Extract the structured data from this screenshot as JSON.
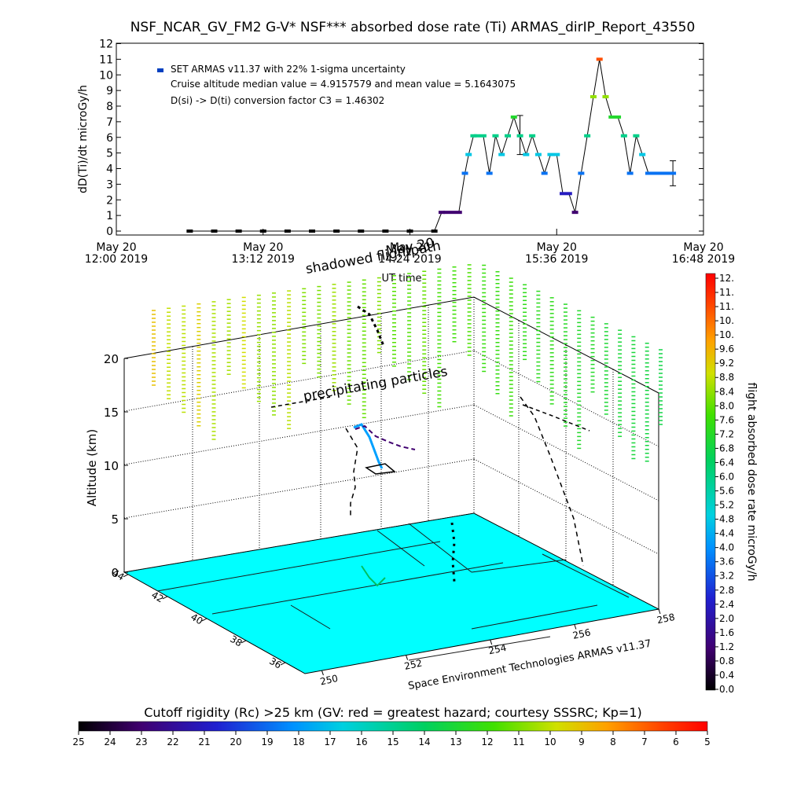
{
  "top_chart": {
    "title": "NSF_NCAR_GV_FM2 G-V* NSF*** absorbed dose rate (Ti) ARMAS_dirIP_Report_43550",
    "ylabel": "dD(Ti)/dt microGy/h",
    "xlabel": "UT time",
    "legend": "SET ARMAS v11.37 with 22% 1-sigma uncertainty",
    "note1": "Cruise altitude median value = 4.9157579 and mean value = 5.1643075",
    "note2": "D(si) -> D(ti) conversion factor C3 = 1.46302",
    "x_ticks": [
      {
        "line1": "May 20",
        "line2": "12:00 2019"
      },
      {
        "line1": "May 20",
        "line2": "13:12 2019"
      },
      {
        "line1": "May 20",
        "line2": "14:24 2019"
      },
      {
        "line1": "May 20",
        "line2": "15:36 2019"
      },
      {
        "line1": "May 20",
        "line2": "16:48 2019"
      }
    ],
    "y_ticks": [
      "0",
      "1",
      "2",
      "3",
      "4",
      "5",
      "6",
      "7",
      "8",
      "9",
      "10",
      "11",
      "12"
    ]
  },
  "scene": {
    "ylabel": "Altitude (km)",
    "alt_ticks": [
      "0",
      "5",
      "10",
      "15",
      "20"
    ],
    "lat_ticks": [
      "36",
      "38",
      "40",
      "42",
      "44"
    ],
    "lon_ticks": [
      "250",
      "252",
      "254",
      "256",
      "258"
    ],
    "credit": "Space Environment Technologies ARMAS v11.37",
    "annotation_shadowed": "shadowed flightpath",
    "annotation_date": "May 20",
    "annotation_precip": "precipitating particles"
  },
  "dose_colorbar": {
    "label": "flight absorbed dose rate microGy/h",
    "ticks": [
      "12.",
      "11.",
      "11.",
      "10.",
      "10.",
      "9.6",
      "9.2",
      "8.8",
      "8.4",
      "8.0",
      "7.6",
      "7.2",
      "6.8",
      "6.4",
      "6.0",
      "5.6",
      "5.2",
      "4.8",
      "4.4",
      "4.0",
      "3.6",
      "3.2",
      "2.8",
      "2.4",
      "2.0",
      "1.6",
      "1.2",
      "0.8",
      "0.4",
      "0.0"
    ]
  },
  "rc_colorbar": {
    "label": "Cutoff rigidity (Rc) >25 km (GV: red = greatest hazard; courtesy SSSRC; Kp=1)",
    "ticks": [
      "25",
      "24",
      "23",
      "22",
      "21",
      "20",
      "19",
      "18",
      "17",
      "16",
      "15",
      "14",
      "13",
      "12",
      "11",
      "10",
      "9",
      "8",
      "7",
      "6",
      "5"
    ]
  },
  "colors": {
    "surface": "#00ffff",
    "ground_line": "#1a1a1a",
    "error_bar": "#000000",
    "dose_low": "#000000",
    "dose_high": "#ff0000"
  },
  "chart_data": {
    "type": "scatter",
    "title": "NSF_NCAR_GV_FM2 G-V* NSF*** absorbed dose rate (Ti) ARMAS_dirIP_Report_43550",
    "xlabel": "UT time",
    "ylabel": "dD(Ti)/dt microGy/h",
    "x_unit": "hours UT on 2019-05-20",
    "xlim": [
      "2019-05-20 12:00",
      "2019-05-20 16:48"
    ],
    "ylim": [
      0,
      12
    ],
    "grid": false,
    "legend_position": "top-left",
    "series": [
      {
        "name": "SET ARMAS v11.37 with 22% 1-sigma uncertainty",
        "color": "#0040c0",
        "x_hours": [
          12.6,
          12.8,
          13.0,
          13.2,
          13.4,
          13.6,
          13.8,
          14.0,
          14.2,
          14.4,
          14.6,
          14.66,
          14.7,
          14.75,
          14.8,
          14.85,
          14.88,
          14.92,
          14.95,
          15.0,
          15.05,
          15.1,
          15.15,
          15.2,
          15.25,
          15.3,
          15.35,
          15.4,
          15.45,
          15.5,
          15.55,
          15.6,
          15.65,
          15.7,
          15.75,
          15.8,
          15.85,
          15.9,
          15.95,
          16.0,
          16.05,
          16.1,
          16.15,
          16.2,
          16.25,
          16.3,
          16.35,
          16.4,
          16.45,
          16.5,
          16.55
        ],
        "values": [
          0,
          0,
          0,
          0,
          0,
          0,
          0,
          0,
          0,
          0,
          0,
          1.2,
          1.2,
          1.2,
          1.2,
          3.7,
          4.9,
          6.1,
          6.1,
          6.1,
          3.7,
          6.1,
          4.9,
          6.1,
          7.3,
          6.1,
          4.9,
          6.1,
          4.9,
          3.7,
          4.9,
          4.9,
          2.4,
          2.4,
          1.2,
          3.7,
          6.1,
          8.6,
          11.0,
          8.6,
          7.3,
          7.3,
          6.1,
          3.7,
          6.1,
          4.9,
          3.7,
          3.7,
          3.7,
          3.7,
          3.7
        ],
        "error_bars": [
          {
            "x_hours": 15.3,
            "value": 6.1,
            "low": 4.9,
            "high": 7.4
          },
          {
            "x_hours": 16.55,
            "value": 3.7,
            "low": 2.9,
            "high": 4.5
          }
        ]
      }
    ]
  }
}
